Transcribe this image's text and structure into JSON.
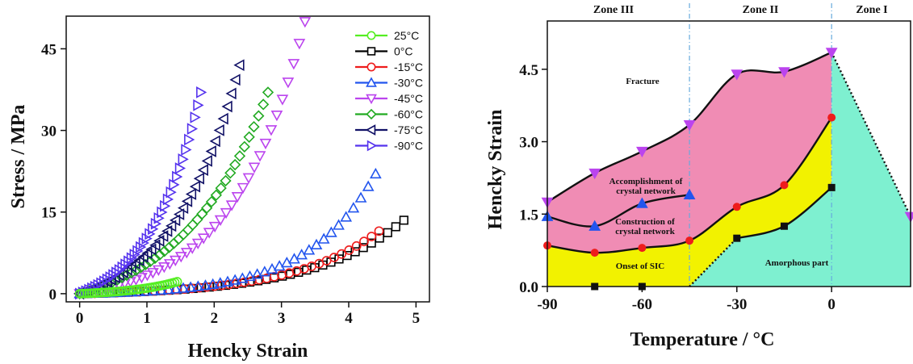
{
  "colors": {
    "c25": "#55ee22",
    "c0": "#000000",
    "cm15": "#ee1c1c",
    "cm30": "#2255ee",
    "cm45": "#bb44ee",
    "cm60": "#22aa22",
    "cm75": "#111166",
    "cm90": "#5533ee",
    "fracture": "#f08cb4",
    "sic": "#f2f200",
    "amorphous": "#7ef0d0",
    "zone_line": "#66aadd"
  },
  "chart_data": [
    {
      "type": "line",
      "xlabel": "Hencky Strain",
      "ylabel": "Stress / MPa",
      "xlim": [
        -0.2,
        5.2
      ],
      "ylim": [
        -1.5,
        51
      ],
      "xticks": [
        "0",
        "1",
        "2",
        "3",
        "4",
        "5"
      ],
      "yticks": [
        "0",
        "15",
        "30",
        "45"
      ],
      "legend_position": "top-right",
      "series": [
        {
          "name": "25°C",
          "marker": "circle",
          "color_key": "c25",
          "end_x": 1.45,
          "end_y": 2.2,
          "k": 2.0
        },
        {
          "name": "0°C",
          "marker": "square",
          "color_key": "c0",
          "end_x": 4.82,
          "end_y": 13.5,
          "k": 3.6
        },
        {
          "name": "-15°C",
          "marker": "circle",
          "color_key": "cm15",
          "end_x": 4.45,
          "end_y": 11.5,
          "k": 3.5
        },
        {
          "name": "-30°C",
          "marker": "triangle-up",
          "color_key": "cm30",
          "end_x": 4.4,
          "end_y": 22,
          "k": 4.4
        },
        {
          "name": "-45°C",
          "marker": "triangle-down",
          "color_key": "cm45",
          "end_x": 3.35,
          "end_y": 50,
          "k": 3.2
        },
        {
          "name": "-60°C",
          "marker": "diamond",
          "color_key": "cm60",
          "end_x": 2.8,
          "end_y": 37,
          "k": 2.2
        },
        {
          "name": "-75°C",
          "marker": "triangle-left",
          "color_key": "cm75",
          "end_x": 2.38,
          "end_y": 42,
          "k": 2.4
        },
        {
          "name": "-90°C",
          "marker": "triangle-right",
          "color_key": "cm90",
          "end_x": 1.8,
          "end_y": 37,
          "k": 2.4
        }
      ]
    },
    {
      "type": "area",
      "xlabel": "Temperature / °C",
      "ylabel": "Hencky Strain",
      "xlim": [
        -90,
        25
      ],
      "ylim": [
        0,
        5.5
      ],
      "xticks": [
        -90,
        -60,
        -30,
        0
      ],
      "yticks": [
        "0.0",
        "1.5",
        "3.0",
        "4.5"
      ],
      "zone_boundaries": [
        -45,
        0
      ],
      "zones": [
        "Zone III",
        "Zone II",
        "Zone I"
      ],
      "regions": [
        "Fracture",
        "Accomplishment of",
        "crystal network",
        "Construction of",
        "crystal network",
        "Onset of SIC",
        "Amorphous part"
      ],
      "fracture_points": [
        [
          -90,
          1.75
        ],
        [
          -75,
          2.35
        ],
        [
          -60,
          2.8
        ],
        [
          -45,
          3.35
        ],
        [
          -30,
          4.4
        ],
        [
          -15,
          4.45
        ],
        [
          0,
          4.85
        ]
      ],
      "accomplishment_points": [
        [
          -90,
          1.45
        ],
        [
          -75,
          1.25
        ],
        [
          -60,
          1.72
        ],
        [
          -45,
          1.9
        ]
      ],
      "construction_points": [
        [
          -90,
          0.85
        ],
        [
          -75,
          0.7
        ],
        [
          -60,
          0.8
        ],
        [
          -45,
          0.95
        ],
        [
          -30,
          1.65
        ],
        [
          -15,
          2.1
        ],
        [
          0,
          3.5
        ]
      ],
      "onset_points": [
        [
          -75,
          0.0
        ],
        [
          -60,
          0.0
        ],
        [
          -30,
          1.0
        ],
        [
          -15,
          1.25
        ],
        [
          0,
          2.05
        ]
      ],
      "edge_point": [
        25,
        1.45
      ]
    }
  ]
}
